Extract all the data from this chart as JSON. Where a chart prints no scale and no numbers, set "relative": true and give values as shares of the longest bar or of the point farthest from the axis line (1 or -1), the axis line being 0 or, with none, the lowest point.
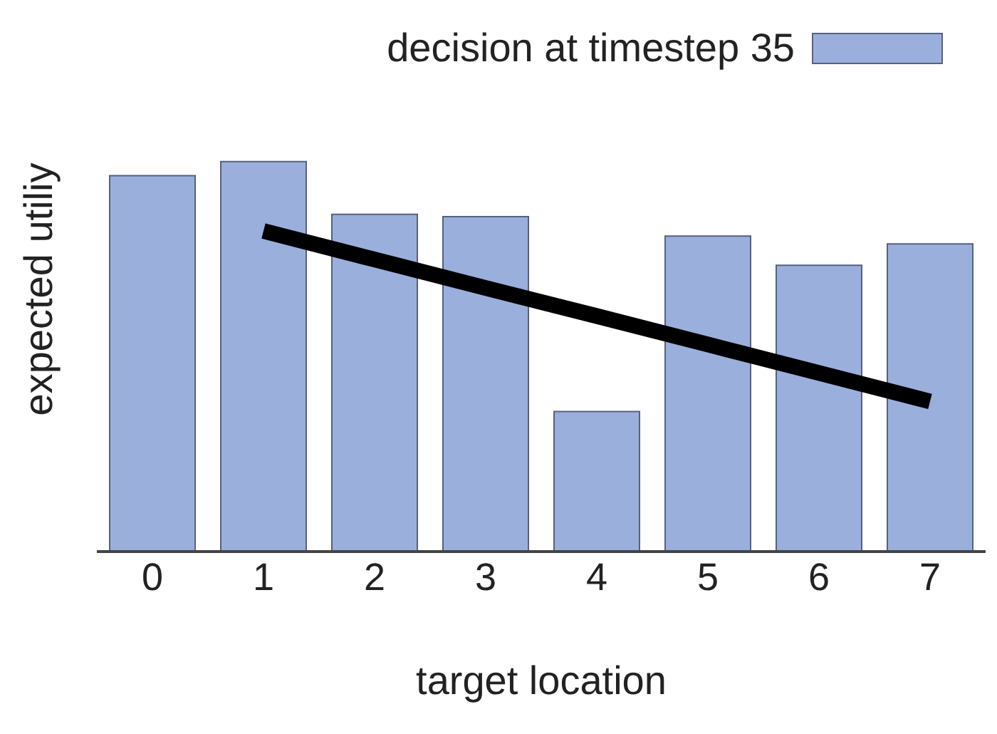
{
  "chart_data": {
    "type": "bar",
    "relative": true,
    "xlabel": "target location",
    "ylabel": "expected utiliy",
    "legend": "top right",
    "categories": [
      "0",
      "1",
      "2",
      "3",
      "4",
      "5",
      "6",
      "7"
    ],
    "series": [
      {
        "name": "decision at timestep 35",
        "color": "#9aafdc",
        "values": [
          0.964,
          1,
          0.865,
          0.859,
          0.359,
          0.809,
          0.734,
          0.789
        ]
      },
      {
        "type": "line",
        "color": "#000000",
        "values": [
          null,
          0.822,
          0.749,
          0.676,
          0.604,
          0.531,
          0.458,
          0.385
        ]
      }
    ]
  }
}
